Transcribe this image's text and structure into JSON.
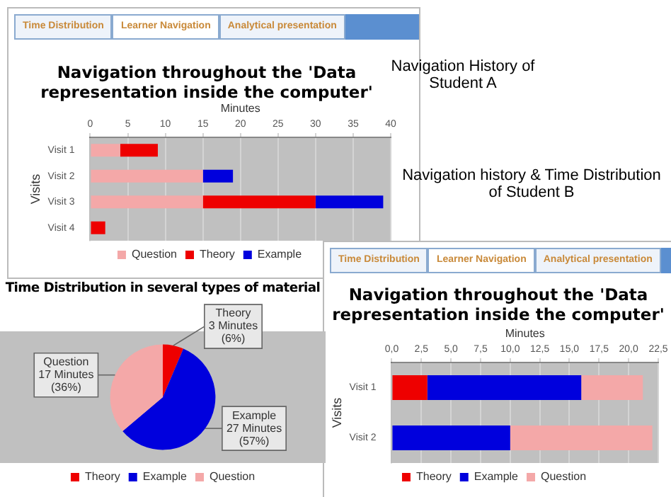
{
  "chart_data": [
    {
      "type": "bar",
      "orientation": "horizontal",
      "stacked": true,
      "title": "Navigation throughout the 'Data representation inside the computer'",
      "xlabel": "Minutes",
      "ylabel": "Visits",
      "categories": [
        "Visit 1",
        "Visit 2",
        "Visit 3",
        "Visit 4"
      ],
      "series": [
        {
          "name": "Question",
          "color": "#f4a8a8",
          "values": [
            4,
            15,
            15,
            0
          ]
        },
        {
          "name": "Theory",
          "color": "#ee0000",
          "values": [
            5,
            0,
            15,
            2
          ]
        },
        {
          "name": "Example",
          "color": "#0000dd",
          "values": [
            0,
            4,
            9,
            0
          ]
        }
      ],
      "xlim": [
        0,
        40
      ],
      "xticks": [
        0,
        5,
        10,
        15,
        20,
        25,
        30,
        35,
        40
      ],
      "grid": "x",
      "legend": "bottom",
      "annotations": [
        "Time Distribution",
        "Learner Navigation",
        "Analytical presentation",
        "Navigation History of Student A"
      ]
    },
    {
      "type": "pie",
      "title": "Time Distribution in several types of material",
      "categories": [
        "Theory",
        "Example",
        "Question"
      ],
      "values": [
        3,
        27,
        17
      ],
      "colors": [
        "#ee0000",
        "#0000dd",
        "#f4a8a8"
      ],
      "value_labels": [
        "3 Minutes (6%)",
        "27 Minutes (57%)",
        "17 Minutes (36%)"
      ],
      "legend": "bottom"
    },
    {
      "type": "bar",
      "orientation": "horizontal",
      "stacked": true,
      "title": "Navigation throughout the 'Data representation inside the computer'",
      "xlabel": "Minutes",
      "ylabel": "Visits",
      "categories": [
        "Visit 1",
        "Visit 2"
      ],
      "series": [
        {
          "name": "Theory",
          "color": "#ee0000",
          "values": [
            3,
            0
          ]
        },
        {
          "name": "Example",
          "color": "#0000dd",
          "values": [
            13,
            10
          ]
        },
        {
          "name": "Question",
          "color": "#f4a8a8",
          "values": [
            5.2,
            12
          ]
        }
      ],
      "xlim": [
        0,
        22.5
      ],
      "xticks": [
        {
          "value": 0,
          "label": "0,0"
        },
        {
          "value": 2.5,
          "label": "2,5"
        },
        {
          "value": 5,
          "label": "5,0"
        },
        {
          "value": 7.5,
          "label": "7,5"
        },
        {
          "value": 10,
          "label": "10,0"
        },
        {
          "value": 12.5,
          "label": "12,5"
        },
        {
          "value": 15,
          "label": "15,0"
        },
        {
          "value": 17.5,
          "label": "17,5"
        },
        {
          "value": 20,
          "label": "20,0"
        },
        {
          "value": 22.5,
          "label": "22,5"
        }
      ],
      "grid": "x",
      "legend": "bottom",
      "annotations": [
        "Time Distribution",
        "Learner Navigation",
        "Analytical presentation",
        "Navigation history & Time Distribution of Student B"
      ]
    }
  ]
}
